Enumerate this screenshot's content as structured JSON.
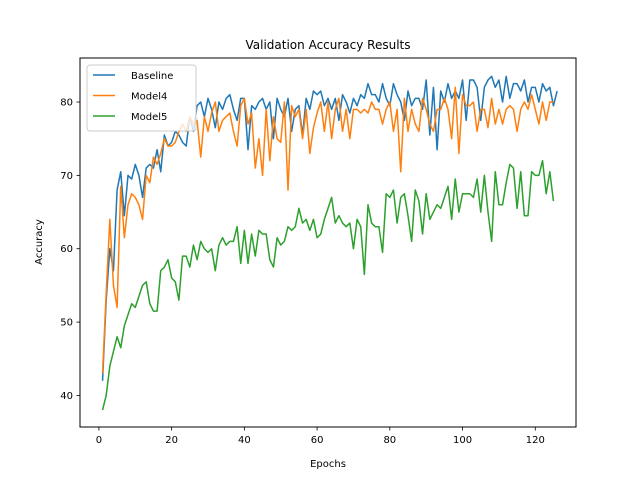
{
  "chart_data": {
    "type": "line",
    "title": "Validation Accuracy Results",
    "xlabel": "Epochs",
    "ylabel": "Accuracy",
    "xlim": [
      -5.2,
      131.2
    ],
    "ylim": [
      35.7,
      86.0
    ],
    "xticks": [
      0,
      20,
      40,
      60,
      80,
      100,
      120
    ],
    "yticks": [
      40,
      50,
      60,
      70,
      80
    ],
    "grid": false,
    "legend_position": "top-left",
    "series": [
      {
        "name": "Baseline",
        "color": "#1f77b4",
        "values": [
          42.0,
          53.0,
          60.0,
          57.0,
          68.0,
          70.5,
          64.5,
          70.0,
          69.5,
          71.5,
          70.0,
          67.0,
          71.0,
          71.5,
          71.0,
          73.5,
          70.5,
          75.5,
          74.0,
          74.5,
          76.0,
          75.5,
          74.5,
          74.0,
          78.0,
          76.0,
          79.5,
          80.0,
          78.0,
          80.5,
          79.0,
          76.5,
          80.0,
          79.0,
          80.5,
          81.0,
          79.0,
          77.5,
          80.5,
          80.5,
          73.5,
          79.5,
          79.0,
          80.0,
          80.5,
          79.0,
          80.0,
          75.0,
          80.5,
          79.0,
          78.0,
          80.5,
          76.0,
          79.0,
          79.5,
          75.5,
          80.5,
          79.0,
          81.5,
          81.0,
          81.5,
          79.5,
          80.5,
          79.0,
          80.5,
          77.5,
          81.0,
          80.0,
          78.5,
          80.5,
          79.5,
          81.0,
          80.5,
          82.5,
          81.0,
          81.0,
          80.0,
          82.5,
          80.5,
          79.5,
          82.5,
          81.0,
          80.0,
          77.5,
          81.5,
          79.5,
          80.5,
          80.5,
          79.0,
          83.0,
          75.5,
          82.0,
          73.5,
          81.5,
          80.0,
          82.5,
          80.5,
          81.5,
          80.5,
          83.0,
          77.5,
          83.0,
          83.0,
          82.0,
          77.5,
          82.0,
          83.0,
          83.5,
          82.0,
          83.0,
          80.0,
          83.5,
          80.5,
          82.5,
          82.5,
          81.5,
          83.0,
          80.0,
          82.0,
          82.0,
          80.0,
          82.5,
          81.5,
          82.0,
          79.5,
          81.5
        ]
      },
      {
        "name": "Model4",
        "color": "#ff7f0e",
        "values": [
          43.0,
          54.0,
          64.0,
          55.0,
          52.0,
          68.5,
          61.5,
          66.0,
          67.5,
          67.0,
          66.0,
          64.0,
          70.0,
          69.0,
          72.5,
          71.5,
          73.0,
          75.0,
          74.0,
          74.0,
          74.5,
          76.0,
          77.0,
          76.0,
          78.0,
          77.0,
          77.5,
          72.5,
          78.0,
          76.0,
          78.5,
          80.0,
          76.0,
          77.5,
          78.0,
          78.5,
          76.0,
          74.0,
          79.5,
          80.5,
          77.0,
          78.5,
          71.0,
          75.0,
          70.0,
          79.0,
          72.0,
          78.0,
          75.0,
          74.5,
          80.0,
          68.0,
          79.5,
          78.0,
          79.0,
          75.0,
          79.0,
          73.0,
          76.5,
          78.5,
          80.0,
          76.0,
          80.0,
          75.0,
          79.0,
          80.5,
          76.0,
          79.0,
          75.0,
          79.0,
          79.0,
          78.5,
          79.0,
          78.5,
          80.0,
          79.0,
          79.0,
          77.0,
          79.0,
          80.0,
          76.0,
          79.0,
          70.5,
          80.5,
          76.0,
          79.0,
          77.0,
          76.0,
          80.5,
          79.0,
          77.0,
          76.0,
          79.0,
          79.0,
          80.5,
          79.0,
          75.0,
          82.0,
          73.0,
          81.0,
          79.5,
          79.5,
          80.0,
          76.0,
          79.0,
          79.0,
          76.5,
          80.5,
          77.0,
          79.0,
          77.0,
          79.0,
          79.5,
          79.0,
          76.0,
          79.0,
          80.0,
          79.0,
          81.0,
          79.0,
          77.0,
          80.0,
          77.5,
          80.0,
          80.0
        ]
      },
      {
        "name": "Model5",
        "color": "#2ca02c",
        "values": [
          38.0,
          40.0,
          44.0,
          46.0,
          48.0,
          46.5,
          49.5,
          51.0,
          52.5,
          52.0,
          53.5,
          55.0,
          55.5,
          52.5,
          51.5,
          51.5,
          57.0,
          57.5,
          58.5,
          56.0,
          55.5,
          53.0,
          59.0,
          59.0,
          57.5,
          60.5,
          58.5,
          61.0,
          60.0,
          59.5,
          60.0,
          57.0,
          60.5,
          61.5,
          60.5,
          61.0,
          61.0,
          63.0,
          58.0,
          62.5,
          58.0,
          62.0,
          59.0,
          62.5,
          62.0,
          62.0,
          58.5,
          57.5,
          61.5,
          60.5,
          61.0,
          63.0,
          62.5,
          63.0,
          65.5,
          63.5,
          64.0,
          62.5,
          64.0,
          61.5,
          62.0,
          64.0,
          65.5,
          67.0,
          63.5,
          64.5,
          63.5,
          63.0,
          63.5,
          60.0,
          64.0,
          63.0,
          56.5,
          66.0,
          63.5,
          63.0,
          63.0,
          59.5,
          67.5,
          67.0,
          68.0,
          63.5,
          67.0,
          67.5,
          64.5,
          61.0,
          68.0,
          66.5,
          62.0,
          67.5,
          64.0,
          65.0,
          66.0,
          65.5,
          67.0,
          68.5,
          64.0,
          69.5,
          65.0,
          67.5,
          67.5,
          67.5,
          67.0,
          69.5,
          65.0,
          70.0,
          65.0,
          61.0,
          70.5,
          66.0,
          66.0,
          69.0,
          71.5,
          71.0,
          65.5,
          70.5,
          64.5,
          64.5,
          70.5,
          70.0,
          70.0,
          72.0,
          67.5,
          70.5,
          66.5
        ]
      }
    ]
  }
}
